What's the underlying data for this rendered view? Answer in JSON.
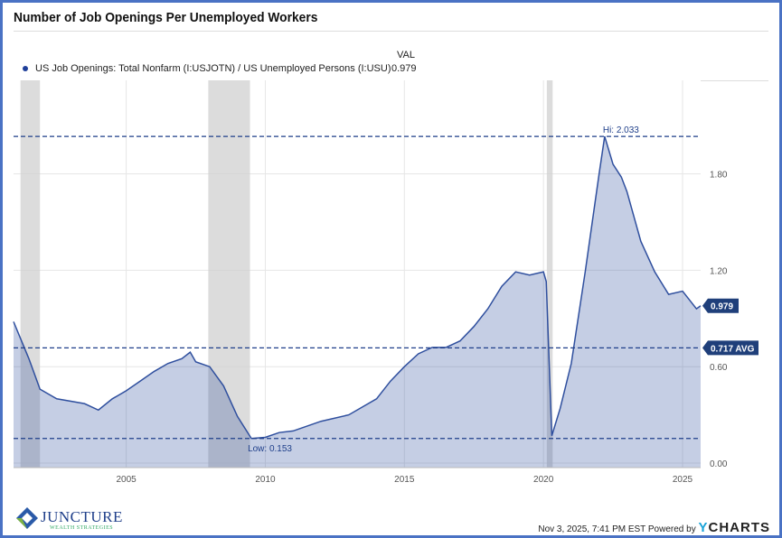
{
  "chart_data": {
    "type": "area",
    "title": "Number of Job Openings Per Unemployed Workers",
    "value_header": "VAL",
    "series": [
      {
        "name": "US Job Openings: Total Nonfarm (I:USJOTN) / US Unemployed Persons (I:USU)",
        "value": "0.979",
        "color": "#2f4f9e",
        "x": [
          2000.95,
          2001.5,
          2001.9,
          2002.5,
          2003.5,
          2004,
          2004.5,
          2005,
          2005.5,
          2006,
          2006.5,
          2007,
          2007.3,
          2007.5,
          2008,
          2008.5,
          2009,
          2009.5,
          2010,
          2010.5,
          2011,
          2012,
          2013,
          2014,
          2014.5,
          2015,
          2015.5,
          2016,
          2016.5,
          2017,
          2017.5,
          2018,
          2018.5,
          2019,
          2019.5,
          2020,
          2020.1,
          2020.3,
          2020.6,
          2021,
          2021.5,
          2022,
          2022.2,
          2022.5,
          2022.8,
          2023,
          2023.5,
          2024,
          2024.5,
          2025,
          2025.5,
          2025.65
        ],
        "y": [
          0.88,
          0.65,
          0.46,
          0.4,
          0.37,
          0.33,
          0.4,
          0.45,
          0.51,
          0.57,
          0.62,
          0.65,
          0.69,
          0.63,
          0.6,
          0.48,
          0.29,
          0.153,
          0.16,
          0.19,
          0.2,
          0.26,
          0.3,
          0.4,
          0.51,
          0.6,
          0.68,
          0.72,
          0.72,
          0.76,
          0.85,
          0.96,
          1.1,
          1.19,
          1.17,
          1.19,
          1.13,
          0.17,
          0.34,
          0.62,
          1.19,
          1.8,
          2.033,
          1.86,
          1.78,
          1.69,
          1.38,
          1.19,
          1.05,
          1.07,
          0.96,
          0.979
        ]
      }
    ],
    "x_ticks": [
      "2005",
      "2010",
      "2015",
      "2020",
      "2025"
    ],
    "x_tick_values": [
      2005,
      2010,
      2015,
      2020,
      2025
    ],
    "y_ticks": [
      "0.00",
      "0.60",
      "1.20",
      "1.80"
    ],
    "y_tick_values": [
      0,
      0.6,
      1.2,
      1.8
    ],
    "xlim": [
      2000.95,
      2025.65
    ],
    "ylim": [
      0,
      2.1
    ],
    "recessions": [
      [
        2001.2,
        2001.9
      ],
      [
        2007.95,
        2009.45
      ],
      [
        2020.12,
        2020.33
      ]
    ],
    "reference_lines": [
      {
        "label": "Hi: 2.033",
        "value": 2.033
      },
      {
        "label": "0.717 AVG",
        "value": 0.717
      },
      {
        "label": "Low: 0.153",
        "value": 0.153
      }
    ],
    "last_value_tag": "0.979"
  },
  "footer": {
    "timestamp": "Nov 3, 2025, 7:41 PM EST Powered by",
    "brand_y": "Y",
    "brand_rest": "CHARTS"
  },
  "logo": {
    "name": "JUNCTURE",
    "sub": "WEALTH STRATEGIES"
  }
}
